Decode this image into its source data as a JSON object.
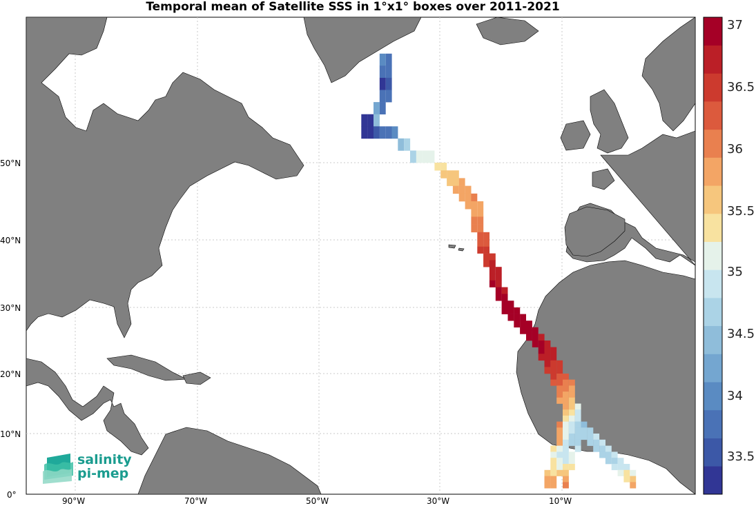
{
  "title": "Temporal mean of Satellite SSS in 1°x1° boxes over 2011-2021",
  "lat_labels": [
    "50°N",
    "40°N",
    "30°N",
    "20°N",
    "10°N",
    "0°"
  ],
  "lon_labels": [
    "90°W",
    "70°W",
    "50°W",
    "30°W",
    "10°W"
  ],
  "colorbar": {
    "labels": [
      "37",
      "36.5",
      "36",
      "35.5",
      "35",
      "34.5",
      "34",
      "33.5"
    ],
    "colors": [
      "#313695",
      "#3c58a7",
      "#4a72b6",
      "#5a8bc2",
      "#74a6d0",
      "#8fbdda",
      "#abd3e6",
      "#c8e5ef",
      "#e5f2ea",
      "#f8e2a0",
      "#f6c67d",
      "#f3a565",
      "#e9804f",
      "#dc5a3d",
      "#cc3a2e",
      "#bb1f27",
      "#a50026"
    ],
    "min": 33.2,
    "max": 37.2
  },
  "logo": {
    "line1": "salinity",
    "line2": "pi-mep"
  },
  "colors": {
    "land": "#808080",
    "ocean": "#ffffff",
    "grid": "#c8c8c8"
  },
  "sss_cells": [
    [
      36.5,
      58.5,
      33.9
    ],
    [
      35.5,
      58.5,
      34.0
    ],
    [
      35.5,
      57.5,
      33.9
    ],
    [
      36.5,
      57.5,
      33.7
    ],
    [
      36.5,
      56.5,
      33.5
    ],
    [
      35.5,
      56.5,
      33.4
    ],
    [
      36.5,
      55.5,
      33.7
    ],
    [
      35.5,
      55.5,
      33.9
    ],
    [
      35.5,
      54.5,
      33.9
    ],
    [
      34.5,
      54.5,
      34.2
    ],
    [
      34.5,
      53.5,
      34.4
    ],
    [
      33.5,
      53.5,
      33.3
    ],
    [
      32.5,
      53.5,
      33.3
    ],
    [
      32.5,
      52.5,
      33.3
    ],
    [
      33.5,
      52.5,
      33.3
    ],
    [
      34.5,
      52.5,
      33.6
    ],
    [
      35.5,
      52.5,
      33.8
    ],
    [
      36.5,
      52.5,
      33.9
    ],
    [
      37.5,
      52.5,
      34.0
    ],
    [
      38.5,
      51.5,
      34.4
    ],
    [
      39.5,
      51.5,
      34.8
    ],
    [
      40.5,
      50.5,
      34.8
    ],
    [
      41.5,
      50.5,
      35.1
    ],
    [
      42.5,
      50.5,
      35.2
    ],
    [
      43.5,
      50.5,
      35.3
    ],
    [
      44.5,
      49.5,
      35.4
    ],
    [
      45.5,
      49.5,
      35.5
    ],
    [
      46.5,
      48.5,
      35.6
    ],
    [
      47.5,
      48.5,
      35.7
    ],
    [
      45.5,
      48.5,
      35.6
    ],
    [
      46.5,
      47.5,
      35.7
    ],
    [
      47.5,
      47.5,
      35.7
    ],
    [
      48.5,
      47.5,
      35.8
    ],
    [
      47.5,
      46.5,
      35.8
    ],
    [
      48.5,
      46.5,
      35.8
    ],
    [
      49.5,
      46.5,
      35.9
    ],
    [
      48.5,
      45.5,
      35.9
    ],
    [
      49.5,
      45.5,
      36.0
    ],
    [
      50.5,
      45.5,
      36.1
    ],
    [
      49.5,
      44.5,
      35.9
    ],
    [
      50.5,
      44.5,
      36.0
    ],
    [
      51.5,
      44.5,
      35.9
    ],
    [
      50.5,
      43.5,
      35.9
    ],
    [
      51.5,
      43.5,
      36.0
    ],
    [
      50.5,
      42.5,
      36.1
    ],
    [
      51.5,
      42.5,
      36.1
    ],
    [
      50.5,
      41.5,
      36.2
    ],
    [
      51.5,
      41.5,
      36.2
    ],
    [
      51.5,
      40.5,
      36.3
    ],
    [
      52.5,
      40.5,
      36.3
    ],
    [
      51.5,
      39.5,
      36.4
    ],
    [
      52.5,
      39.5,
      36.3
    ],
    [
      51.5,
      38.5,
      36.5
    ],
    [
      52.5,
      38.5,
      36.5
    ],
    [
      52.5,
      37.5,
      36.6
    ],
    [
      53.5,
      37.5,
      36.6
    ],
    [
      52.5,
      36.5,
      36.7
    ],
    [
      53.5,
      36.5,
      36.8
    ],
    [
      53.5,
      35.5,
      36.9
    ],
    [
      54.5,
      35.5,
      36.8
    ],
    [
      53.5,
      34.5,
      36.9
    ],
    [
      54.5,
      34.5,
      36.9
    ],
    [
      53.5,
      33.5,
      37.0
    ],
    [
      54.5,
      33.5,
      36.9
    ],
    [
      54.5,
      32.5,
      37.0
    ],
    [
      55.5,
      32.5,
      36.9
    ],
    [
      54.5,
      31.5,
      37.0
    ],
    [
      55.5,
      31.5,
      37.0
    ],
    [
      55.5,
      30.5,
      37.0
    ],
    [
      56.5,
      30.5,
      37.0
    ],
    [
      55.5,
      29.5,
      37.0
    ],
    [
      56.5,
      29.5,
      37.0
    ],
    [
      57.5,
      29.5,
      37.0
    ],
    [
      56.5,
      28.5,
      37.0
    ],
    [
      57.5,
      28.5,
      37.0
    ],
    [
      58.5,
      28.5,
      37.0
    ],
    [
      57.5,
      27.5,
      37.0
    ],
    [
      58.5,
      27.5,
      37.0
    ],
    [
      59.5,
      27.5,
      37.0
    ],
    [
      58.5,
      26.5,
      37.0
    ],
    [
      59.5,
      26.5,
      37.0
    ],
    [
      60.5,
      26.5,
      37.0
    ],
    [
      59.5,
      25.5,
      37.0
    ],
    [
      60.5,
      25.5,
      37.0
    ],
    [
      61.5,
      25.5,
      36.9
    ],
    [
      60.5,
      24.5,
      37.0
    ],
    [
      61.5,
      24.5,
      37.0
    ],
    [
      62.5,
      24.5,
      36.9
    ],
    [
      61.5,
      23.5,
      37.0
    ],
    [
      62.5,
      23.5,
      36.9
    ],
    [
      63.5,
      23.5,
      36.8
    ],
    [
      61.5,
      22.5,
      36.9
    ],
    [
      62.5,
      22.5,
      36.9
    ],
    [
      63.5,
      22.5,
      36.8
    ],
    [
      62.5,
      21.5,
      36.8
    ],
    [
      63.5,
      21.5,
      36.7
    ],
    [
      64.5,
      21.5,
      36.6
    ],
    [
      62.5,
      20.5,
      36.7
    ],
    [
      63.5,
      20.5,
      36.6
    ],
    [
      64.5,
      20.5,
      36.5
    ],
    [
      63.5,
      19.5,
      36.5
    ],
    [
      64.5,
      19.5,
      36.4
    ],
    [
      65.5,
      19.5,
      36.3
    ],
    [
      63.5,
      18.5,
      36.4
    ],
    [
      64.5,
      18.5,
      36.3
    ],
    [
      65.5,
      18.5,
      36.2
    ],
    [
      66.5,
      18.5,
      36.1
    ],
    [
      64.5,
      17.5,
      36.2
    ],
    [
      65.5,
      17.5,
      36.1
    ],
    [
      66.5,
      17.5,
      36.0
    ],
    [
      64.5,
      16.5,
      36.1
    ],
    [
      65.5,
      16.5,
      36.0
    ],
    [
      66.5,
      16.5,
      35.9
    ],
    [
      64.5,
      15.5,
      36.0
    ],
    [
      65.5,
      15.5,
      35.9
    ],
    [
      66.5,
      15.5,
      35.7
    ],
    [
      65.5,
      14.5,
      35.8
    ],
    [
      66.5,
      14.5,
      35.6
    ],
    [
      67.5,
      14.5,
      35.3
    ],
    [
      65.5,
      13.5,
      35.7
    ],
    [
      66.5,
      13.5,
      35.4
    ],
    [
      67.5,
      13.5,
      35.0
    ],
    [
      65.5,
      12.5,
      35.5
    ],
    [
      66.5,
      12.5,
      35.2
    ],
    [
      67.5,
      12.5,
      34.9
    ],
    [
      64.5,
      11.5,
      36.1
    ],
    [
      65.5,
      11.5,
      35.3
    ],
    [
      66.5,
      11.5,
      35.0
    ],
    [
      67.5,
      11.5,
      34.8
    ],
    [
      68.5,
      11.5,
      34.6
    ],
    [
      64.5,
      10.5,
      36.0
    ],
    [
      65.5,
      10.5,
      35.2
    ],
    [
      66.5,
      10.5,
      34.9
    ],
    [
      67.5,
      10.5,
      34.8
    ],
    [
      68.5,
      10.5,
      34.7
    ],
    [
      69.5,
      10.5,
      34.8
    ],
    [
      64.5,
      9.5,
      35.9
    ],
    [
      65.5,
      9.5,
      35.1
    ],
    [
      66.5,
      9.5,
      34.8
    ],
    [
      67.5,
      9.5,
      34.7
    ],
    [
      68.5,
      9.5,
      34.7
    ],
    [
      69.5,
      9.5,
      34.8
    ],
    [
      70.5,
      9.5,
      34.9
    ],
    [
      64.5,
      8.5,
      35.8
    ],
    [
      65.5,
      8.5,
      35.0
    ],
    [
      66.5,
      8.5,
      34.8
    ],
    [
      67.5,
      8.5,
      34.8
    ],
    [
      69.5,
      8.5,
      34.8
    ],
    [
      70.5,
      8.5,
      34.7
    ],
    [
      71.5,
      8.5,
      34.9
    ],
    [
      63.5,
      7.5,
      35.5
    ],
    [
      64.5,
      7.5,
      35.1
    ],
    [
      65.5,
      7.5,
      34.9
    ],
    [
      67.5,
      7.5,
      34.9
    ],
    [
      70.5,
      7.5,
      34.8
    ],
    [
      71.5,
      7.5,
      34.7
    ],
    [
      72.5,
      7.5,
      34.9
    ],
    [
      63.5,
      6.5,
      35.3
    ],
    [
      64.5,
      6.5,
      35.0
    ],
    [
      65.5,
      6.5,
      34.9
    ],
    [
      66.5,
      6.5,
      35.1
    ],
    [
      71.5,
      6.5,
      34.8
    ],
    [
      72.5,
      6.5,
      34.7
    ],
    [
      73.5,
      6.5,
      34.9
    ],
    [
      63.5,
      5.5,
      35.4
    ],
    [
      64.5,
      5.5,
      35.2
    ],
    [
      65.5,
      5.5,
      35.0
    ],
    [
      66.5,
      5.5,
      35.3
    ],
    [
      72.5,
      5.5,
      34.8
    ],
    [
      73.5,
      5.5,
      34.8
    ],
    [
      74.5,
      5.5,
      34.9
    ],
    [
      63.5,
      4.5,
      35.5
    ],
    [
      64.5,
      4.5,
      35.3
    ],
    [
      65.5,
      4.5,
      35.4
    ],
    [
      66.5,
      4.5,
      35.5
    ],
    [
      73.5,
      4.5,
      34.9
    ],
    [
      74.5,
      4.5,
      34.9
    ],
    [
      75.5,
      4.5,
      35.0
    ],
    [
      62.5,
      3.5,
      35.6
    ],
    [
      63.5,
      3.5,
      35.5
    ],
    [
      64.5,
      3.5,
      35.6
    ],
    [
      65.5,
      3.5,
      35.7
    ],
    [
      74.5,
      3.5,
      35.2
    ],
    [
      75.5,
      3.5,
      35.4
    ],
    [
      76.5,
      3.5,
      35.1
    ],
    [
      62.5,
      2.5,
      35.9
    ],
    [
      63.5,
      2.5,
      35.8
    ],
    [
      65.5,
      2.5,
      35.9
    ],
    [
      75.5,
      2.5,
      35.5
    ],
    [
      76.5,
      2.5,
      35.6
    ],
    [
      62.5,
      1.5,
      36.0
    ],
    [
      63.5,
      1.5,
      36.0
    ],
    [
      65.5,
      1.5,
      36.1
    ],
    [
      76.5,
      1.5,
      35.8
    ]
  ]
}
